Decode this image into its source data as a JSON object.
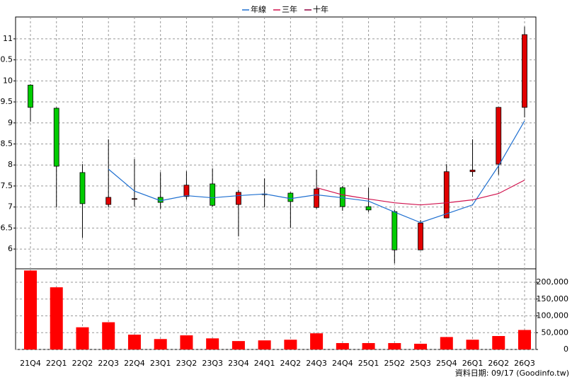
{
  "chart_data": {
    "type": "candlestick",
    "categories": [
      "21Q4",
      "22Q1",
      "22Q2",
      "22Q3",
      "22Q4",
      "23Q1",
      "23Q2",
      "23Q3",
      "23Q4",
      "24Q1",
      "24Q2",
      "24Q3",
      "24Q4",
      "25Q1",
      "25Q2",
      "25Q3",
      "25Q4",
      "26Q1",
      "26Q2",
      "26Q3"
    ],
    "open": [
      9.9,
      9.35,
      7.82,
      7.06,
      7.19,
      7.23,
      7.25,
      7.55,
      7.06,
      7.3,
      7.33,
      6.99,
      7.46,
      7.01,
      6.89,
      5.98,
      6.74,
      7.84,
      8.02,
      9.37
    ],
    "high": [
      9.92,
      9.37,
      8.02,
      8.61,
      8.14,
      7.83,
      7.85,
      7.92,
      7.41,
      7.68,
      7.35,
      7.89,
      7.5,
      7.46,
      6.93,
      6.69,
      8.02,
      8.61,
      9.37,
      11.29
    ],
    "low": [
      9.03,
      6.99,
      6.27,
      6.99,
      7.01,
      6.96,
      7.18,
      7.01,
      6.3,
      6.99,
      6.5,
      6.96,
      6.91,
      6.88,
      5.66,
      5.98,
      6.74,
      7.72,
      7.77,
      9.13
    ],
    "close": [
      9.37,
      7.97,
      7.08,
      7.23,
      7.2,
      7.11,
      7.52,
      7.04,
      7.35,
      7.31,
      7.13,
      7.43,
      7.01,
      6.93,
      5.98,
      6.62,
      7.84,
      7.88,
      9.37,
      11.1
    ],
    "up_color": "#e00000",
    "down_color": "#00cc00",
    "ylim": [
      5.53,
      11.52
    ],
    "yticks": [
      6,
      6.5,
      7,
      7.5,
      8,
      8.5,
      9,
      9.5,
      10,
      10.5,
      11
    ],
    "grid": true,
    "lines": [
      {
        "name": "年線",
        "color": "#1e6fd0",
        "values": [
          null,
          null,
          null,
          7.9,
          7.38,
          7.15,
          7.27,
          7.22,
          7.27,
          7.31,
          7.2,
          7.29,
          7.22,
          7.14,
          6.88,
          6.63,
          6.84,
          7.05,
          7.98,
          9.05
        ]
      },
      {
        "name": "三年",
        "color": "#d0104c",
        "values": [
          null,
          null,
          null,
          null,
          null,
          null,
          null,
          null,
          null,
          null,
          null,
          7.46,
          7.29,
          7.19,
          7.1,
          7.05,
          7.1,
          7.17,
          7.32,
          7.64
        ]
      },
      {
        "name": "十年",
        "color": "#900040",
        "values": [
          null,
          null,
          null,
          null,
          null,
          null,
          null,
          null,
          null,
          null,
          null,
          null,
          null,
          null,
          null,
          null,
          null,
          null,
          null,
          null
        ]
      }
    ],
    "volume": {
      "color": "#ff0000",
      "values": [
        235000,
        185000,
        66000,
        81000,
        44000,
        31000,
        42000,
        33000,
        25000,
        27000,
        29000,
        48000,
        19000,
        19000,
        19000,
        17000,
        37000,
        29000,
        40000,
        58000
      ],
      "ylim": [
        0,
        240000
      ],
      "yticks": [
        0,
        {
          "value": 50000,
          "label": "50,000"
        },
        {
          "value": 100000,
          "label": "100,000"
        },
        {
          "value": 150000,
          "label": "150,000"
        },
        {
          "value": 200000,
          "label": "200,000"
        }
      ]
    },
    "footnote": "資料日期: 09/17 (Goodinfo.tw)"
  }
}
